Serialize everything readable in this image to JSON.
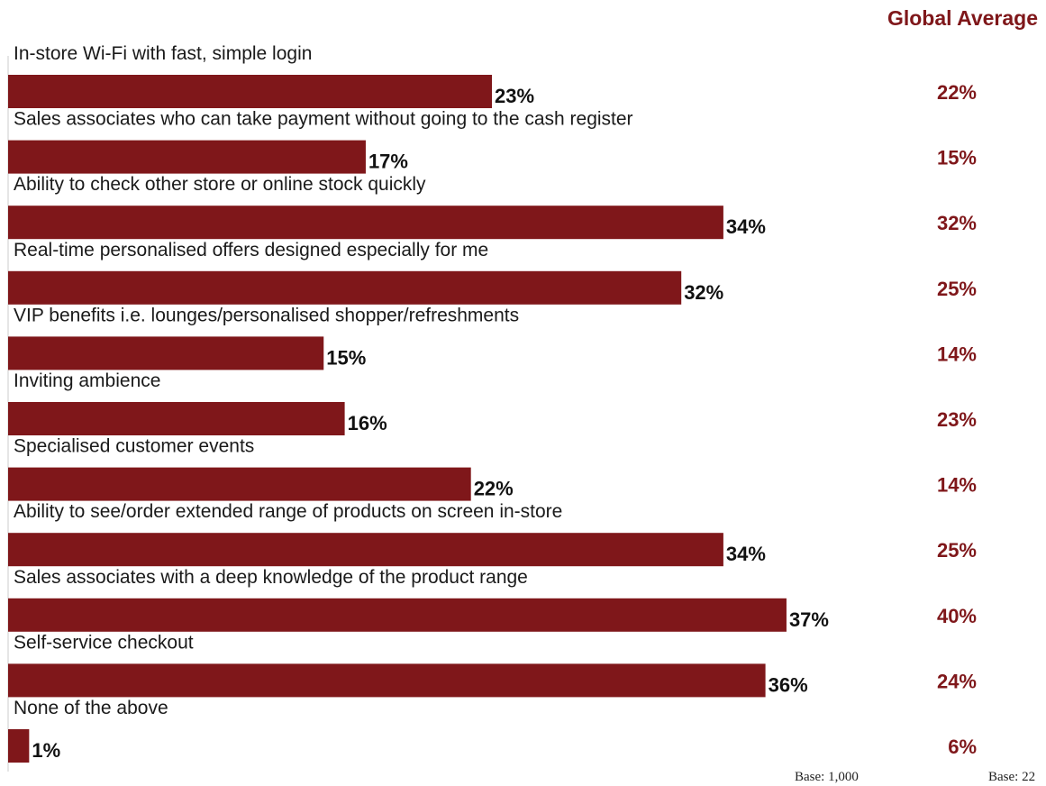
{
  "colors": {
    "bar": "#7f171a",
    "accent_text": "#7f171a",
    "value_text": "#111111",
    "axis": "#cccccc"
  },
  "chart_data": {
    "type": "bar",
    "orientation": "horizontal",
    "categories": [
      "In-store Wi-Fi with fast, simple login",
      "Sales associates who can take payment without going to the cash register",
      "Ability to check other store or online stock quickly",
      "Real-time personalised offers designed especially for me",
      "VIP benefits i.e. lounges/personalised shopper/refreshments",
      "Inviting ambience",
      "Specialised customer events",
      "Ability to see/order extended range of products on screen in-store",
      "Sales associates with a deep knowledge of the product range",
      "Self-service checkout",
      "None of the above"
    ],
    "values": [
      23,
      17,
      34,
      32,
      15,
      16,
      22,
      34,
      37,
      36,
      1
    ],
    "value_labels": [
      "23%",
      "17%",
      "34%",
      "32%",
      "15%",
      "16%",
      "22%",
      "34%",
      "37%",
      "36%",
      "1%"
    ],
    "comparison_title": "Global Average",
    "comparison_values": [
      22,
      15,
      32,
      25,
      14,
      23,
      14,
      25,
      40,
      24,
      6
    ],
    "comparison_labels": [
      "22%",
      "15%",
      "32%",
      "25%",
      "14%",
      "23%",
      "14%",
      "25%",
      "40%",
      "24%",
      "6%"
    ],
    "unit": "%",
    "xlim": [
      0,
      40
    ],
    "grid": false,
    "base_labels": [
      "Base: 1,000",
      "Base: 22"
    ]
  }
}
